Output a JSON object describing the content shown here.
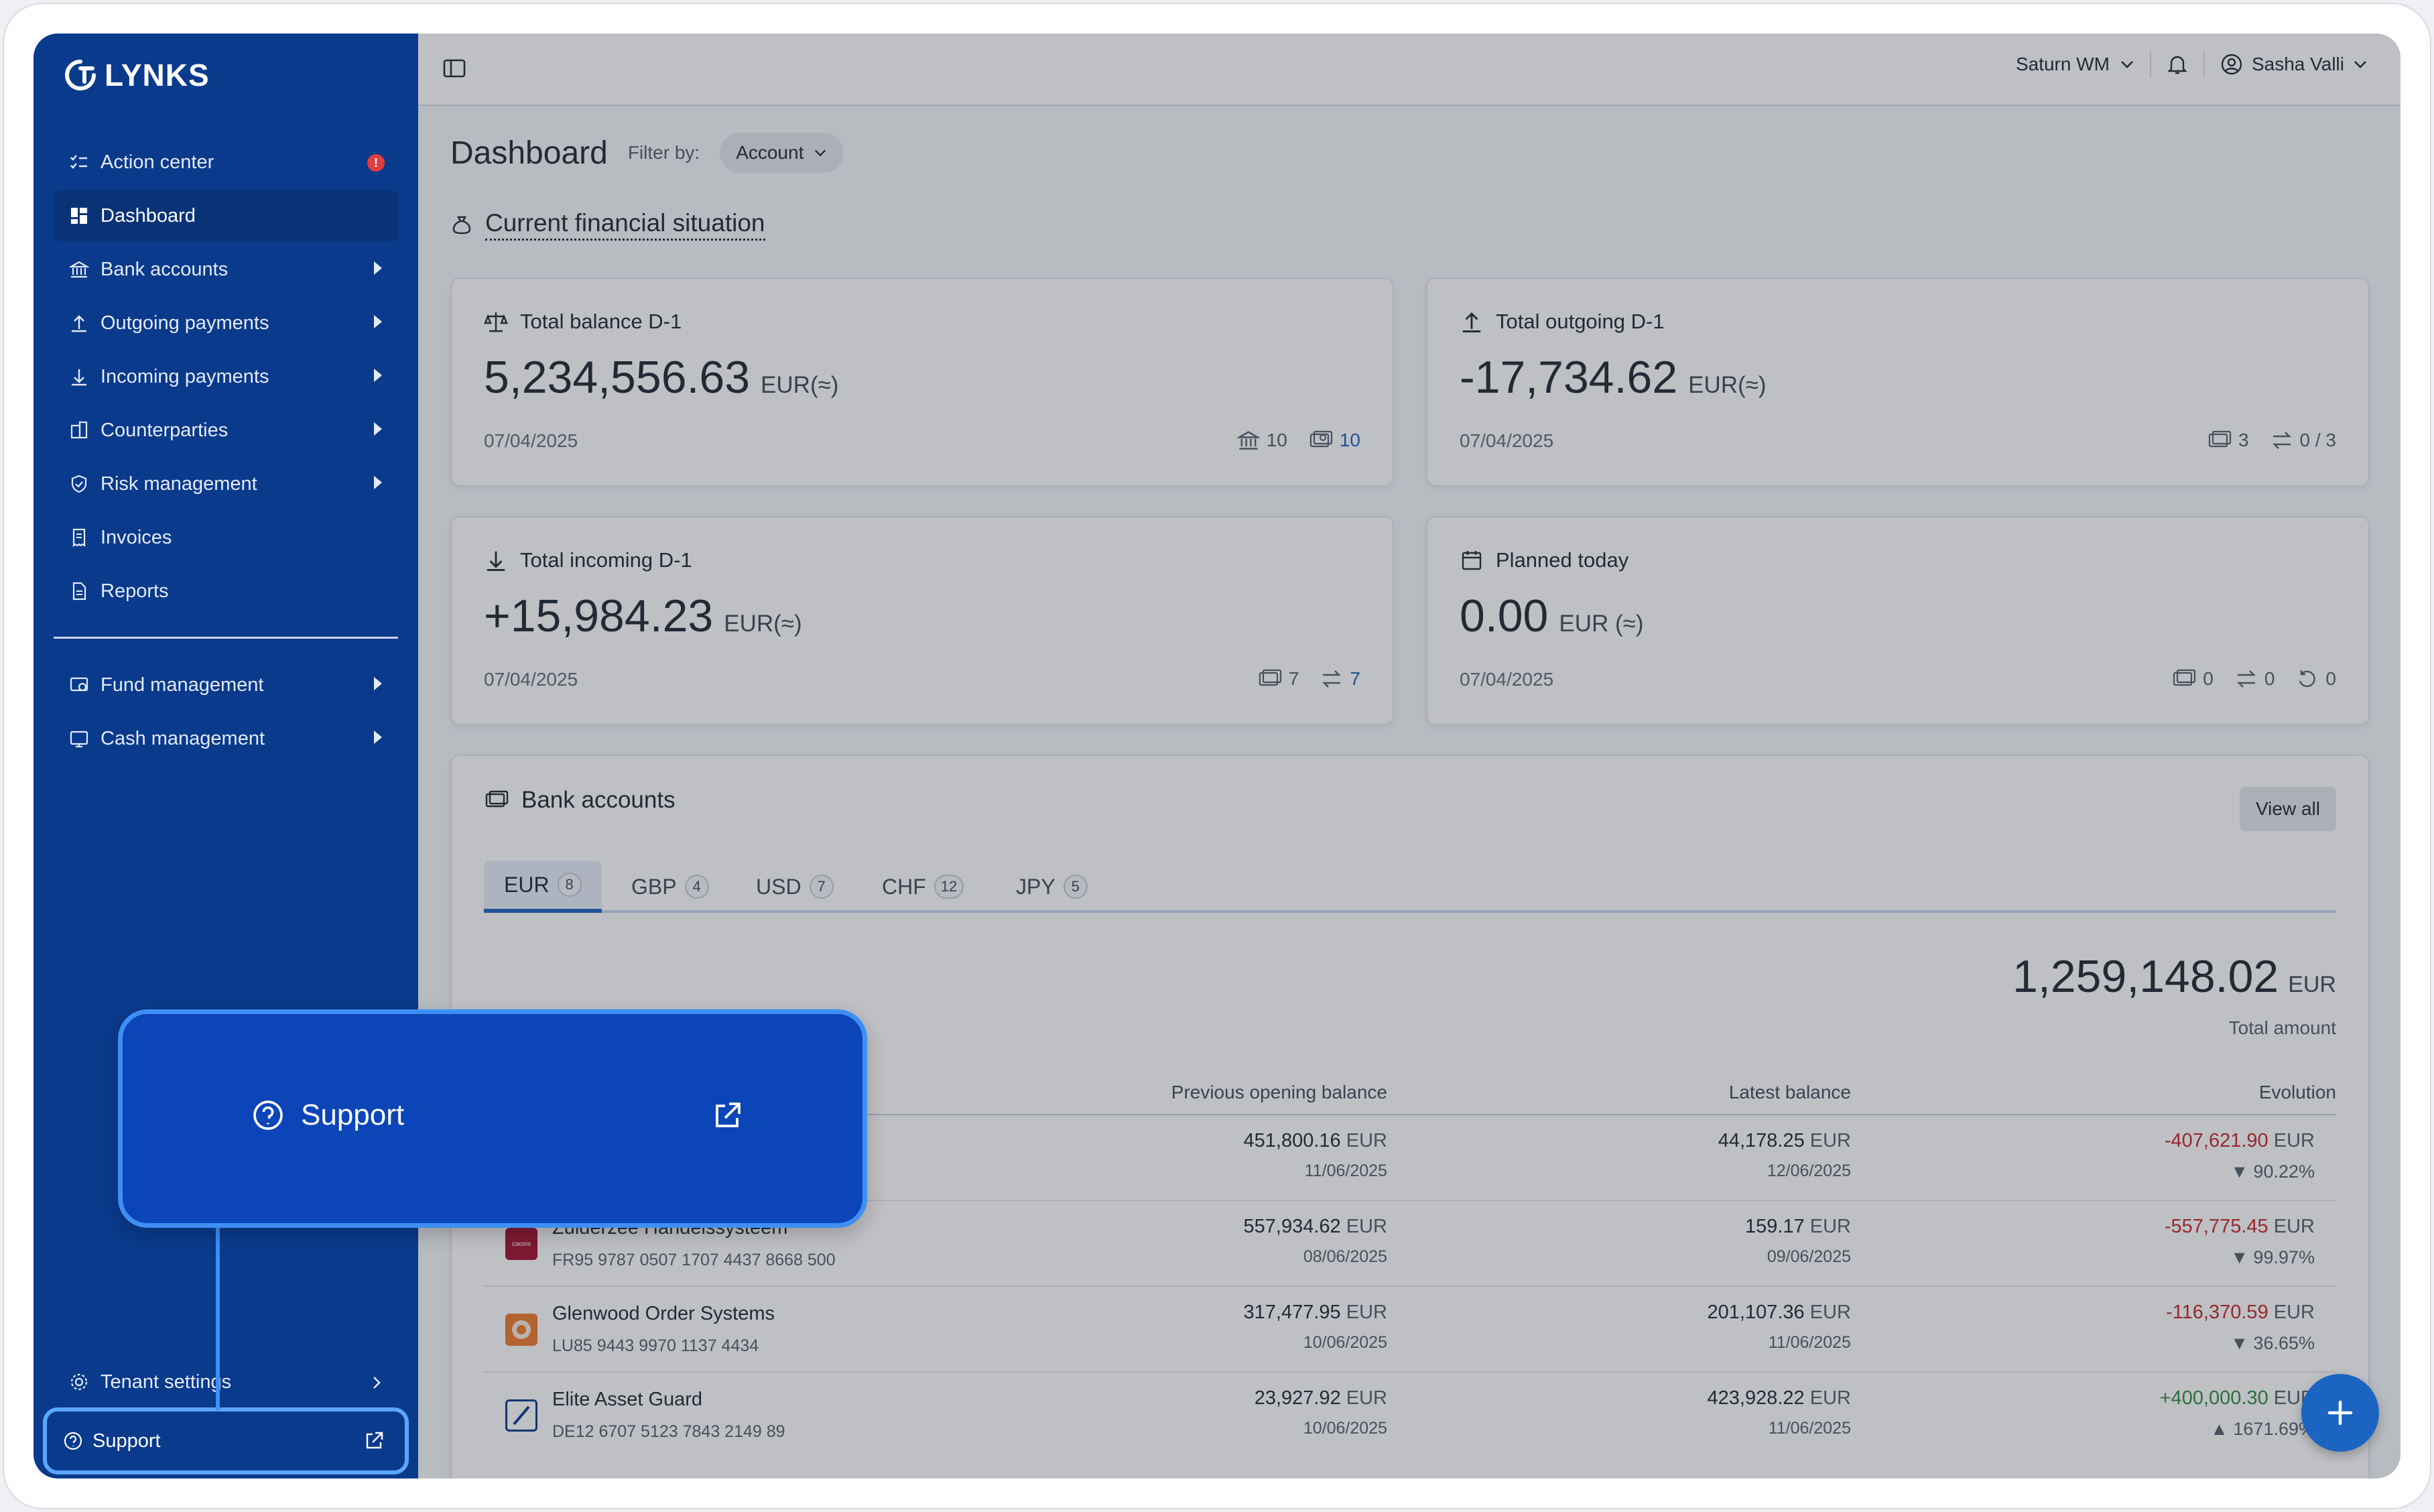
{
  "brand": {
    "name": "LYNKS"
  },
  "sidebar": {
    "items": [
      {
        "label": "Action center",
        "icon": "checklist-icon",
        "badge": "!"
      },
      {
        "label": "Dashboard",
        "icon": "dashboard-icon"
      },
      {
        "label": "Bank accounts",
        "icon": "bank-icon"
      },
      {
        "label": "Outgoing payments",
        "icon": "upload-icon"
      },
      {
        "label": "Incoming payments",
        "icon": "download-icon"
      },
      {
        "label": "Counterparties",
        "icon": "building-icon"
      },
      {
        "label": "Risk management",
        "icon": "shield-icon"
      },
      {
        "label": "Invoices",
        "icon": "invoice-icon"
      },
      {
        "label": "Reports",
        "icon": "report-icon"
      }
    ],
    "items2": [
      {
        "label": "Fund management",
        "icon": "fund-icon"
      },
      {
        "label": "Cash management",
        "icon": "cash-icon"
      }
    ],
    "tenant_settings": "Tenant settings",
    "support": "Support"
  },
  "topbar": {
    "org": "Saturn WM",
    "user": "Sasha Valli"
  },
  "page": {
    "title": "Dashboard",
    "filter_label": "Filter by:",
    "filter_value": "Account",
    "section": "Current financial situation"
  },
  "cards": {
    "balance": {
      "title": "Total balance D-1",
      "value": "5,234,556.63",
      "currency": "EUR(≈)",
      "date": "07/04/2025",
      "banks": "10",
      "accounts": "10"
    },
    "outgoing": {
      "title": "Total outgoing D-1",
      "value": "-17,734.62",
      "currency": "EUR(≈)",
      "date": "07/04/2025",
      "accounts": "3",
      "transfers": "0 / 3"
    },
    "incoming": {
      "title": "Total incoming D-1",
      "value": "+15,984.23",
      "currency": "EUR(≈)",
      "date": "07/04/2025",
      "accounts": "7",
      "transfers": "7"
    },
    "planned": {
      "title": "Planned today",
      "value": "0.00",
      "currency": "EUR (≈)",
      "date": "07/04/2025",
      "accounts": "0",
      "transfers": "0",
      "recurring": "0"
    }
  },
  "bank_accounts": {
    "title": "Bank accounts",
    "view_all": "View all",
    "tabs": [
      {
        "label": "EUR",
        "count": "8"
      },
      {
        "label": "GBP",
        "count": "4"
      },
      {
        "label": "USD",
        "count": "7"
      },
      {
        "label": "CHF",
        "count": "12"
      },
      {
        "label": "JPY",
        "count": "5"
      }
    ],
    "total_value": "1,259,148.02",
    "total_currency": "EUR",
    "total_label": "Total amount",
    "columns": [
      "Previous opening balance",
      "Latest balance",
      "Evolution"
    ],
    "rows": [
      {
        "name": "",
        "iban": "",
        "prev": "451,800.16",
        "prev_date": "11/06/2025",
        "latest": "44,178.25",
        "latest_date": "12/06/2025",
        "evo": "-407,621.90",
        "pct": "90.22%"
      },
      {
        "name": "Zuiderzee Handelssysteem",
        "iban": "FR95 9787 0507 1707 4437 8668 500",
        "prev": "557,934.62",
        "prev_date": "08/06/2025",
        "latest": "159.17",
        "latest_date": "09/06/2025",
        "evo": "-557,775.45",
        "pct": "99.97%"
      },
      {
        "name": "Glenwood Order Systems",
        "iban": "LU85 9443 9970 1137 4434",
        "prev": "317,477.95",
        "prev_date": "10/06/2025",
        "latest": "201,107.36",
        "latest_date": "11/06/2025",
        "evo": "-116,370.59",
        "pct": "36.65%"
      },
      {
        "name": "Elite Asset Guard",
        "iban": "DE12 6707 5123 7843 2149 89",
        "prev": "23,927.92",
        "prev_date": "10/06/2025",
        "latest": "423,928.22",
        "latest_date": "11/06/2025",
        "evo": "+400,000.30",
        "pct": "1671.69%"
      }
    ],
    "eur": "EUR"
  },
  "popup": {
    "label": "Support"
  },
  "colors": {
    "sidebar": "#0a3a8c",
    "accent": "#1c64c2",
    "negative": "#c62828",
    "positive": "#2e8b3e",
    "highlight": "#3d8ff5"
  }
}
